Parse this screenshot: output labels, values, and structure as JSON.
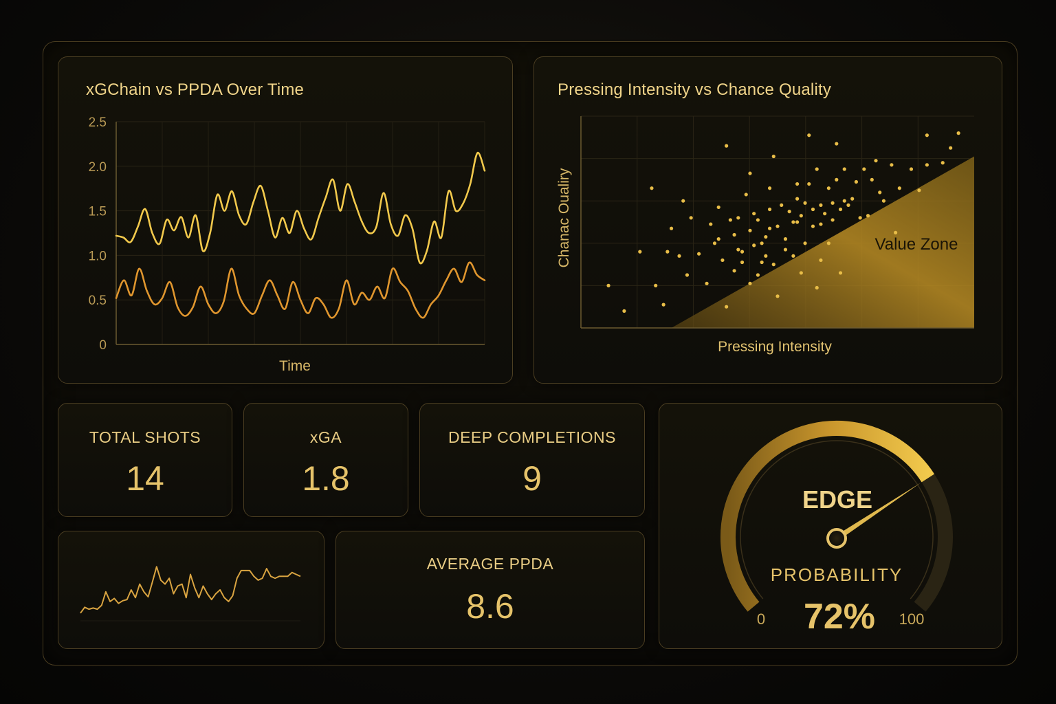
{
  "chart_data": [
    {
      "type": "line",
      "title": "xGChain vs PPDA Over Time",
      "xlabel": "Time",
      "ylabel": "",
      "ylim": [
        0,
        2.5
      ],
      "yticks": [
        "0",
        "0.5",
        "1.0",
        "1.5",
        "2.0",
        "2.5"
      ],
      "grid": true,
      "series": [
        {
          "values": [
            1.22,
            1.2,
            1.15,
            1.32,
            1.52,
            1.25,
            1.13,
            1.4,
            1.28,
            1.43,
            1.2,
            1.45,
            1.05,
            1.25,
            1.68,
            1.5,
            1.72,
            1.45,
            1.35,
            1.6,
            1.78,
            1.5,
            1.2,
            1.42,
            1.25,
            1.5,
            1.3,
            1.18,
            1.42,
            1.65,
            1.85,
            1.5,
            1.8,
            1.6,
            1.38,
            1.25,
            1.32,
            1.7,
            1.35,
            1.22,
            1.45,
            1.3,
            0.92,
            1.05,
            1.38,
            1.2,
            1.72,
            1.5,
            1.58,
            1.8,
            2.15,
            1.95
          ],
          "color": "#f2c94c"
        },
        {
          "values": [
            0.52,
            0.72,
            0.55,
            0.85,
            0.6,
            0.45,
            0.52,
            0.7,
            0.42,
            0.32,
            0.42,
            0.65,
            0.45,
            0.35,
            0.48,
            0.85,
            0.55,
            0.4,
            0.35,
            0.55,
            0.72,
            0.55,
            0.4,
            0.7,
            0.5,
            0.35,
            0.52,
            0.45,
            0.3,
            0.4,
            0.72,
            0.45,
            0.58,
            0.5,
            0.65,
            0.52,
            0.85,
            0.7,
            0.6,
            0.4,
            0.3,
            0.45,
            0.55,
            0.72,
            0.85,
            0.7,
            0.92,
            0.78,
            0.72
          ],
          "color": "#e0962e"
        }
      ]
    },
    {
      "type": "scatter",
      "title": "Pressing Intensity vs Chance Quality",
      "xlabel": "Pressing Intensity",
      "ylabel": "Chanac Oualiry",
      "xlim": [
        0,
        100
      ],
      "ylim": [
        0,
        100
      ],
      "grid": true,
      "annotation": "Value Zone",
      "points": [
        [
          7,
          20
        ],
        [
          11,
          8
        ],
        [
          15,
          36
        ],
        [
          18,
          66
        ],
        [
          19,
          20
        ],
        [
          21,
          11
        ],
        [
          22,
          36
        ],
        [
          23,
          47
        ],
        [
          25,
          34
        ],
        [
          26,
          60
        ],
        [
          27,
          25
        ],
        [
          28,
          52
        ],
        [
          30,
          35
        ],
        [
          32,
          21
        ],
        [
          33,
          49
        ],
        [
          34,
          40
        ],
        [
          35,
          57
        ],
        [
          35,
          42
        ],
        [
          36,
          32
        ],
        [
          37,
          86
        ],
        [
          37,
          10
        ],
        [
          38,
          51
        ],
        [
          39,
          44
        ],
        [
          39,
          27
        ],
        [
          40,
          37
        ],
        [
          40,
          52
        ],
        [
          41,
          31
        ],
        [
          41,
          36
        ],
        [
          42,
          63
        ],
        [
          43,
          46
        ],
        [
          43,
          21
        ],
        [
          43,
          73
        ],
        [
          44,
          54
        ],
        [
          44,
          39
        ],
        [
          45,
          51
        ],
        [
          45,
          25
        ],
        [
          46,
          31
        ],
        [
          46,
          40
        ],
        [
          47,
          34
        ],
        [
          47,
          43
        ],
        [
          48,
          56
        ],
        [
          48,
          66
        ],
        [
          48,
          47
        ],
        [
          49,
          81
        ],
        [
          49,
          30
        ],
        [
          50,
          15
        ],
        [
          50,
          48
        ],
        [
          51,
          58
        ],
        [
          52,
          37
        ],
        [
          52,
          42
        ],
        [
          53,
          55
        ],
        [
          54,
          34
        ],
        [
          54,
          50
        ],
        [
          55,
          68
        ],
        [
          55,
          61
        ],
        [
          55,
          50
        ],
        [
          56,
          26
        ],
        [
          56,
          53
        ],
        [
          57,
          59
        ],
        [
          57,
          40
        ],
        [
          58,
          68
        ],
        [
          58,
          91
        ],
        [
          59,
          56
        ],
        [
          59,
          48
        ],
        [
          60,
          75
        ],
        [
          60,
          19
        ],
        [
          61,
          58
        ],
        [
          61,
          49
        ],
        [
          61,
          32
        ],
        [
          62,
          54
        ],
        [
          63,
          66
        ],
        [
          63,
          40
        ],
        [
          64,
          51
        ],
        [
          64,
          59
        ],
        [
          65,
          70
        ],
        [
          65,
          87
        ],
        [
          66,
          56
        ],
        [
          66,
          26
        ],
        [
          67,
          75
        ],
        [
          67,
          60
        ],
        [
          68,
          58
        ],
        [
          69,
          61
        ],
        [
          70,
          69
        ],
        [
          71,
          52
        ],
        [
          72,
          75
        ],
        [
          73,
          53
        ],
        [
          74,
          70
        ],
        [
          75,
          79
        ],
        [
          76,
          64
        ],
        [
          77,
          60
        ],
        [
          79,
          77
        ],
        [
          80,
          45
        ],
        [
          81,
          66
        ],
        [
          84,
          75
        ],
        [
          86,
          65
        ],
        [
          88,
          91
        ],
        [
          88,
          77
        ],
        [
          92,
          78
        ],
        [
          94,
          85
        ],
        [
          96,
          92
        ]
      ]
    },
    {
      "type": "line",
      "title": "",
      "series": [
        {
          "values": [
            0.2,
            0.35,
            0.3,
            0.33,
            0.3,
            0.4,
            0.75,
            0.5,
            0.58,
            0.45,
            0.52,
            0.55,
            0.8,
            0.6,
            0.95,
            0.75,
            0.62,
            1.0,
            1.4,
            1.05,
            0.95,
            1.1,
            0.7,
            0.9,
            0.95,
            0.6,
            1.2,
            0.85,
            0.6,
            0.9,
            0.7,
            0.55,
            0.7,
            0.8,
            0.6,
            0.5,
            0.65,
            1.1,
            1.3,
            1.3,
            1.3,
            1.15,
            1.05,
            1.1,
            1.35,
            1.15,
            1.1,
            1.15,
            1.15,
            1.15,
            1.25,
            1.2,
            1.15
          ],
          "color": "#d9a441"
        }
      ]
    }
  ],
  "kpis": {
    "total_shots": {
      "label": "TOTAL SHOTS",
      "value": "14"
    },
    "xga": {
      "label": "xGA",
      "value": "1.8"
    },
    "deep_completions": {
      "label": "DEEP COMPLETIONS",
      "value": "9"
    },
    "average_ppda": {
      "label": "AVERAGE PPDA",
      "value": "8.6"
    }
  },
  "gauge": {
    "title": "EDGE",
    "label": "PROBABILITY",
    "value": 72,
    "value_text": "72%",
    "min_label": "0",
    "max_label": "100"
  },
  "colors": {
    "gold": "#f2c94c",
    "orange": "#e0962e",
    "accent": "#d6a73a"
  }
}
